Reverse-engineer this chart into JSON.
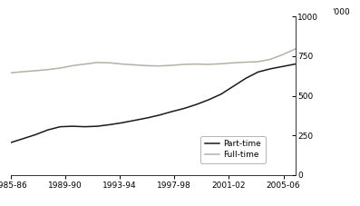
{
  "ylabel_right": "'000",
  "x_labels": [
    "1985-86",
    "1989-90",
    "1993-94",
    "1997-98",
    "2001-02",
    "2005-06"
  ],
  "ylim": [
    0,
    1000
  ],
  "yticks": [
    0,
    250,
    500,
    750,
    1000
  ],
  "ytick_labels": [
    "0",
    "250",
    "500",
    "750",
    "1000"
  ],
  "part_time": [
    205,
    230,
    255,
    285,
    305,
    308,
    305,
    308,
    318,
    330,
    345,
    360,
    378,
    400,
    420,
    445,
    475,
    510,
    560,
    610,
    650,
    670,
    685,
    700
  ],
  "full_time": [
    645,
    652,
    658,
    665,
    675,
    690,
    700,
    710,
    708,
    700,
    695,
    690,
    688,
    692,
    698,
    700,
    698,
    702,
    708,
    712,
    715,
    730,
    760,
    795
  ],
  "part_time_color": "#1a1a1a",
  "full_time_color": "#b8b0a6",
  "legend_part_time": "Part-time",
  "legend_full_time": "Full-time",
  "line_width": 1.1,
  "background_color": "#ffffff",
  "x_tick_positions": [
    0,
    3.83,
    7.67,
    11.5,
    15.33,
    19.17
  ],
  "n_points": 24
}
